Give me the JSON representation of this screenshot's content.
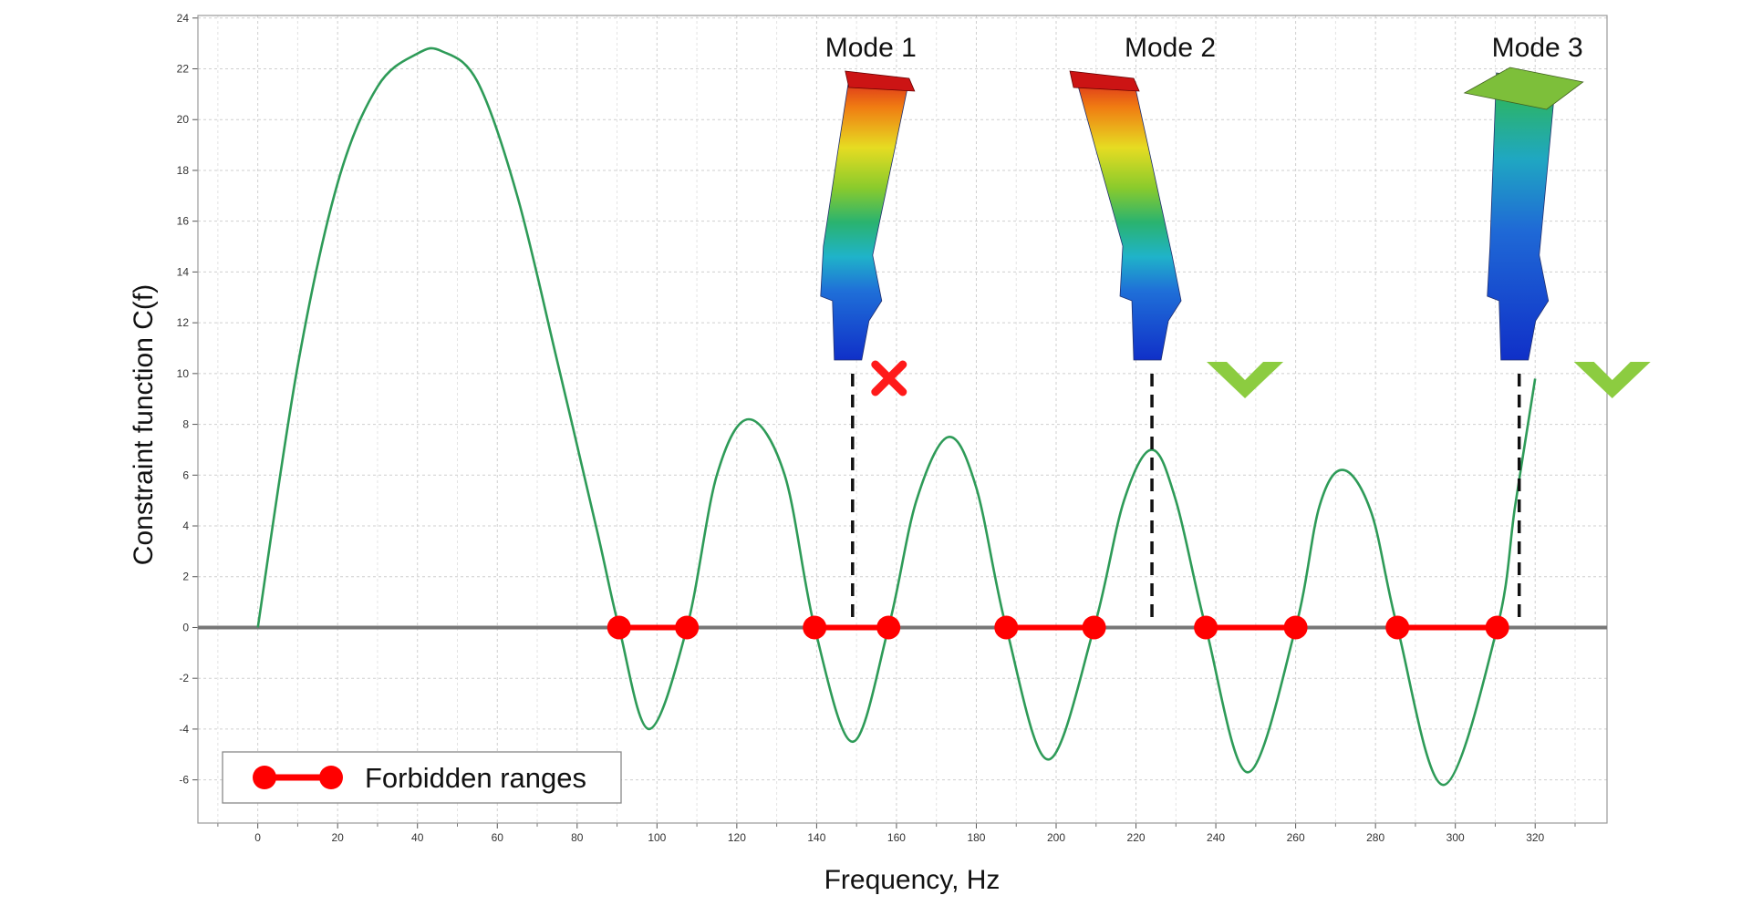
{
  "chart_data": {
    "type": "line",
    "xlabel": "Frequency, Hz",
    "ylabel": "Constraint  function  C(f)",
    "xlim": [
      -15,
      338
    ],
    "ylim": [
      -7.7,
      24.1
    ],
    "x_ticks": [
      0,
      20,
      40,
      60,
      80,
      100,
      120,
      140,
      160,
      180,
      200,
      220,
      240,
      260,
      280,
      300,
      320
    ],
    "y_ticks": [
      -6,
      -4,
      -2,
      0,
      2,
      4,
      6,
      8,
      10,
      12,
      14,
      16,
      18,
      20,
      22,
      24
    ],
    "grid": true,
    "colors": {
      "curve": "#2e9b58",
      "zero_line": "#777777",
      "forbidden": "#ff0000",
      "check": "#8ccc40",
      "cross": "#ff1a1a"
    },
    "series": [
      {
        "x": [
          0,
          10,
          20,
          30,
          40,
          46,
          55,
          65,
          75,
          85,
          90.5,
          98,
          107.5,
          115,
          123,
          132,
          139.5,
          149,
          158,
          165,
          173,
          180,
          187.5,
          198,
          209.5,
          217,
          224,
          230,
          237.5,
          248,
          260,
          266,
          272,
          279,
          285.5,
          297,
          310.5,
          315,
          320
        ],
        "y": [
          0,
          10.3,
          17.5,
          21.3,
          22.6,
          22.7,
          21.5,
          17,
          10.5,
          3.8,
          0,
          -4,
          0,
          6,
          8.2,
          6,
          0,
          -4.5,
          0,
          5,
          7.5,
          5.5,
          0,
          -5.2,
          0,
          5,
          7,
          5,
          0,
          -5.7,
          0,
          4.8,
          6.2,
          4.5,
          0,
          -6.2,
          0,
          4.8,
          9.8
        ]
      }
    ],
    "forbidden_ranges": [
      [
        90.5,
        107.5
      ],
      [
        139.5,
        158
      ],
      [
        187.5,
        209.5
      ],
      [
        237.5,
        260
      ],
      [
        285.5,
        310.5
      ]
    ],
    "modes": [
      {
        "label": "Mode 1",
        "frequency": 149,
        "status": "fail"
      },
      {
        "label": "Mode 2",
        "frequency": 224,
        "status": "pass"
      },
      {
        "label": "Mode 3",
        "frequency": 316,
        "status": "pass"
      }
    ],
    "legend": {
      "label": "Forbidden ranges",
      "position": "bottom-left"
    }
  }
}
